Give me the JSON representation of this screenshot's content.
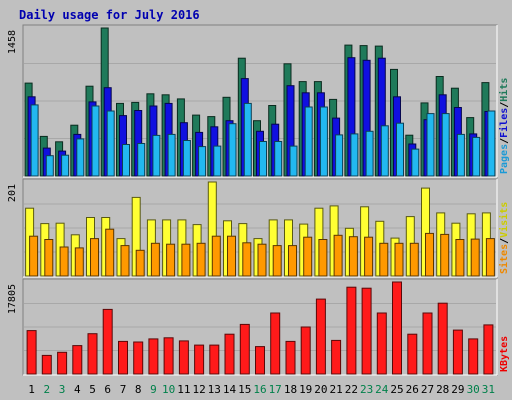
{
  "chart_data": {
    "type": "bar",
    "title": "Daily usage for July 2016",
    "categories": [
      "1",
      "2",
      "3",
      "4",
      "5",
      "6",
      "7",
      "8",
      "9",
      "10",
      "11",
      "12",
      "13",
      "14",
      "15",
      "16",
      "17",
      "18",
      "19",
      "20",
      "21",
      "22",
      "23",
      "24",
      "25",
      "26",
      "27",
      "28",
      "29",
      "30",
      "31"
    ],
    "weekend_days": [
      "2",
      "3",
      "9",
      "10",
      "16",
      "17",
      "23",
      "24",
      "30",
      "31"
    ],
    "panels": [
      {
        "id": "hits",
        "scale_label": "1458",
        "ymax": 1458,
        "series": [
          {
            "name": "Hits",
            "color": "#1f7a5a",
            "values": [
              915,
              390,
              337,
              500,
              885,
              1458,
              715,
              725,
              810,
              800,
              760,
              600,
              585,
              775,
              1160,
              545,
              695,
              1105,
              930,
              930,
              755,
              1290,
              1285,
              1280,
              1050,
              402,
              720,
              980,
              865,
              575,
              920
            ]
          },
          {
            "name": "Files",
            "color": "#1010e0",
            "values": [
              780,
              275,
              245,
              410,
              730,
              870,
              595,
              645,
              690,
              715,
              525,
              430,
              485,
              545,
              960,
              440,
              510,
              890,
              820,
              820,
              570,
              1165,
              1140,
              1160,
              780,
              315,
              555,
              800,
              675,
              415,
              635
            ]
          },
          {
            "name": "Pages",
            "color": "#22b8f0",
            "values": [
              700,
              200,
              205,
              365,
              690,
              640,
              310,
              320,
              400,
              410,
              350,
              290,
              295,
              515,
              715,
              340,
              340,
              295,
              680,
              680,
              405,
              415,
              440,
              495,
              520,
              265,
              615,
              615,
              410,
              380,
              640
            ]
          }
        ],
        "legend": [
          {
            "text": "Pages",
            "color": "#1c9ad6"
          },
          {
            "text": "Files",
            "color": "#1010d0"
          },
          {
            "text": "Hits",
            "color": "#1f7a5a"
          }
        ]
      },
      {
        "id": "visits",
        "scale_label": "201",
        "ymax": 201,
        "series": [
          {
            "name": "Visits",
            "color": "#ffff33",
            "values": [
              145,
              112,
              113,
              88,
              125,
              125,
              80,
              168,
              120,
              120,
              120,
              110,
              201,
              118,
              112,
              80,
              120,
              120,
              111,
              145,
              150,
              102,
              148,
              117,
              81,
              127,
              188,
              135,
              113,
              133,
              135
            ]
          },
          {
            "name": "Sites",
            "color": "#ff9900",
            "values": [
              85,
              78,
              62,
              60,
              80,
              100,
              65,
              55,
              70,
              68,
              68,
              70,
              85,
              85,
              71,
              68,
              65,
              65,
              83,
              78,
              87,
              84,
              83,
              70,
              70,
              70,
              91,
              89,
              78,
              79,
              80
            ]
          }
        ],
        "legend": [
          {
            "text": "Sites",
            "color": "#ee8800"
          },
          {
            "text": "Visits",
            "color": "#cccc00"
          }
        ]
      },
      {
        "id": "kbytes",
        "scale_label": "17805",
        "ymax": 17805,
        "series": [
          {
            "name": "KBytes",
            "color": "#ff1a1a",
            "values": [
              8400,
              3600,
              4200,
              5500,
              7800,
              12500,
              6300,
              6200,
              6800,
              7000,
              6400,
              5600,
              5600,
              7700,
              9600,
              5300,
              11800,
              6300,
              9100,
              14500,
              6500,
              16800,
              16600,
              11800,
              17805,
              7700,
              11800,
              13700,
              8500,
              6800,
              9500
            ]
          }
        ],
        "legend": [
          {
            "text": "KBytes",
            "color": "#ee0000"
          }
        ]
      }
    ],
    "grid": true
  }
}
